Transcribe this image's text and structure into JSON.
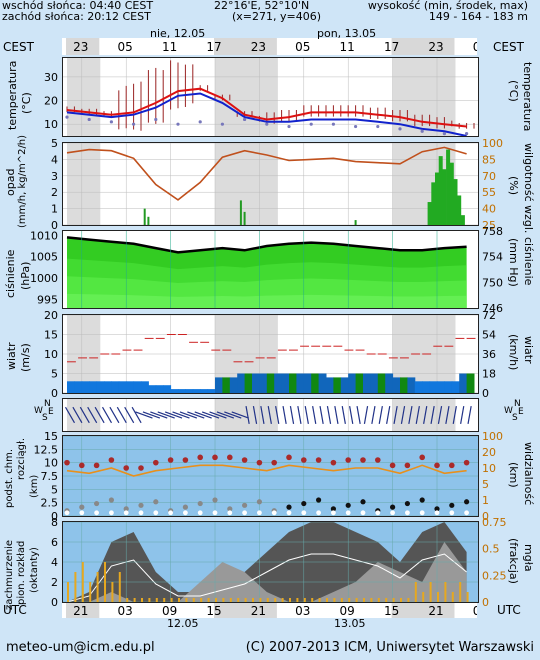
{
  "header": {
    "sunrise": "wschód słońca: 04:40 CEST",
    "sunset": "zachód słońca: 20:12 CEST",
    "coords": "22°16'E, 52°10'N",
    "grid": "(x=271, y=406)",
    "elevation_title": "wysokość (min, środek, max)",
    "elevation_values": "149 - 164 - 183 m"
  },
  "timeline": {
    "tz_top": "CEST",
    "tz_bottom": "UTC",
    "day1": "nie, 12.05",
    "day2": "pon, 13.05",
    "top_hours": [
      "23",
      "05",
      "11",
      "17",
      "23",
      "05",
      "11",
      "17",
      "23",
      "05"
    ],
    "bottom_hours": [
      "21",
      "03",
      "09",
      "15",
      "21",
      "03",
      "09",
      "15",
      "21",
      "03"
    ],
    "bottom_dates": [
      "12.05",
      "13.05"
    ]
  },
  "footer": {
    "email": "meteo-um@icm.edu.pl",
    "copyright": "(C) 2007-2013 ICM, Uniwersytet Warszawski"
  },
  "chart_data": [
    {
      "type": "line",
      "panel": "temperature",
      "ylabel_left": "temperatura",
      "ylabel_left_unit": "(°C)",
      "ylabel_right": "temperatura",
      "ylabel_right_unit": "(°C)",
      "ylim": [
        5,
        38
      ],
      "yticks": [
        10,
        20,
        30
      ],
      "x_hours": [
        0,
        3,
        6,
        9,
        12,
        15,
        18,
        21,
        24,
        27,
        30,
        33,
        36,
        39,
        42,
        45,
        48,
        51,
        54
      ],
      "series": [
        {
          "color": "#dd1111",
          "values": [
            16,
            15,
            14,
            15,
            19,
            24,
            25,
            21,
            14,
            12,
            13,
            15,
            15,
            15,
            14,
            13,
            11,
            10,
            9
          ]
        },
        {
          "color": "#1122cc",
          "values": [
            15,
            14,
            13,
            14,
            17,
            22,
            23,
            19,
            13,
            11,
            11,
            12,
            12,
            12,
            11,
            10,
            8,
            7,
            5
          ]
        },
        {
          "color": "#7777bb",
          "values": [
            13,
            12,
            11,
            10,
            12,
            10,
            11,
            10,
            12,
            10,
            9,
            10,
            10,
            9,
            9,
            8,
            7,
            6,
            6
          ]
        }
      ]
    },
    {
      "type": "bar+line",
      "panel": "precipitation_humidity",
      "ylabel_left": "opad",
      "ylabel_left_unit": "(mm/h, kg/m^2/h)",
      "ylabel_right": "wilgotność wzgl.",
      "ylabel_right_unit": "(%)",
      "ylim_left": [
        0,
        5
      ],
      "yticks_left": [
        0,
        1,
        2,
        3,
        4,
        5
      ],
      "ylim_right": [
        25,
        100
      ],
      "yticks_right": [
        25,
        40,
        55,
        70,
        85,
        100
      ],
      "humidity_hours": [
        0,
        3,
        6,
        9,
        12,
        15,
        18,
        21,
        24,
        27,
        30,
        33,
        36,
        39,
        42,
        45,
        48,
        51,
        54
      ],
      "humidity_values": [
        91,
        94,
        93,
        86,
        62,
        48,
        64,
        87,
        93,
        89,
        84,
        85,
        86,
        83,
        82,
        81,
        92,
        96,
        90
      ],
      "precip_hours": [
        10.5,
        11,
        23.5,
        24,
        39,
        49,
        49.5,
        50,
        50.5,
        51,
        51.5,
        52,
        52.5,
        53,
        53.5
      ],
      "precip_values": [
        1.0,
        0.5,
        1.5,
        0.8,
        0.3,
        1.4,
        2.6,
        3.2,
        4.2,
        3.4,
        4.6,
        3.8,
        2.8,
        1.8,
        0.6
      ]
    },
    {
      "type": "area",
      "panel": "pressure",
      "ylabel_left": "ciśnienie",
      "ylabel_left_unit": "(hPa)",
      "ylabel_right": "ciśnienie",
      "ylabel_right_unit": "(mm Hg)",
      "ylim": [
        993,
        1011
      ],
      "yticks_left": [
        995,
        1000,
        1005,
        1010
      ],
      "yticks_right": [
        746,
        750,
        754,
        758
      ],
      "x_hours": [
        0,
        3,
        6,
        9,
        12,
        15,
        18,
        21,
        24,
        27,
        30,
        33,
        36,
        39,
        42,
        45,
        48,
        51,
        54
      ],
      "values": [
        1009.5,
        1009.0,
        1008.5,
        1008.0,
        1007.0,
        1006.0,
        1006.5,
        1007.0,
        1006.5,
        1007.5,
        1008.0,
        1008.3,
        1008.0,
        1007.5,
        1007.0,
        1006.5,
        1006.5,
        1007.0,
        1007.3
      ]
    },
    {
      "type": "line",
      "panel": "wind",
      "ylabel_left": "wiatr",
      "ylabel_left_unit": "(m/s)",
      "ylabel_right": "wiatr",
      "ylabel_right_unit": "(km/h)",
      "ylim": [
        0,
        20
      ],
      "yticks_left": [
        0,
        5,
        10,
        15,
        20
      ],
      "yticks_right": [
        0,
        18,
        36,
        54,
        72
      ],
      "x_hours": [
        0,
        3,
        6,
        9,
        12,
        15,
        18,
        21,
        24,
        27,
        30,
        33,
        36,
        39,
        42,
        45,
        48,
        51,
        54
      ],
      "gust_values": [
        8,
        9,
        10,
        11,
        14,
        15,
        13,
        11,
        8,
        9,
        11,
        12,
        12,
        11,
        10,
        9,
        10,
        12,
        14
      ],
      "speed_values": [
        3,
        3,
        3,
        3,
        2,
        1,
        1,
        4,
        5,
        5,
        5,
        5,
        4,
        5,
        5,
        4,
        3,
        3,
        5
      ]
    },
    {
      "type": "line",
      "panel": "cloud_visibility",
      "ylabel_left": "podst. chm.",
      "ylabel_left2": "rozciągł.",
      "ylabel_left_unit": "(km)",
      "ylabel_right": "widzialność",
      "ylabel_right_unit": "(km)",
      "ylim": [
        0,
        15
      ],
      "yticks_left": [
        0.0,
        2.5,
        5.0,
        7.5,
        10.0,
        12.5,
        15.0
      ],
      "yticks_right": [
        "0",
        "1",
        "5",
        "10",
        "20",
        "100"
      ],
      "x_hours": [
        0,
        3,
        6,
        9,
        12,
        15,
        18,
        21,
        24,
        27,
        30,
        33,
        36,
        39,
        42,
        45,
        48,
        51,
        54
      ],
      "visibility_values": [
        8.5,
        8.0,
        9.0,
        7.5,
        8.5,
        9.0,
        9.5,
        9.5,
        9.0,
        8.5,
        9.5,
        9.0,
        8.5,
        9.0,
        9.0,
        8.0,
        9.5,
        8.0,
        8.5
      ]
    },
    {
      "type": "area",
      "panel": "cloudiness_fog",
      "ylabel_left": "zachmurzenie",
      "ylabel_left2": "pion. rozkład",
      "ylabel_left_unit": "(oktanty)",
      "ylabel_right": "mgła",
      "ylabel_right_unit": "(frakcja)",
      "ylim": [
        0,
        8
      ],
      "yticks_left": [
        0,
        2,
        4,
        6,
        8
      ],
      "yticks_right": [
        "0",
        "0.25",
        "0.5",
        "0.75"
      ],
      "x_hours": [
        0,
        3,
        6,
        9,
        12,
        15,
        18,
        21,
        24,
        27,
        30,
        33,
        36,
        39,
        42,
        45,
        48,
        51,
        54
      ],
      "high_cloud_values": [
        0,
        1,
        6,
        7,
        3,
        1,
        1,
        2,
        3,
        5,
        7,
        8,
        8,
        7,
        6,
        4,
        7,
        8,
        5
      ],
      "low_cloud_values": [
        0,
        0,
        1,
        0,
        0,
        0,
        2,
        4,
        3,
        1,
        0,
        0,
        1,
        2,
        4,
        3,
        2,
        6,
        3
      ]
    }
  ]
}
